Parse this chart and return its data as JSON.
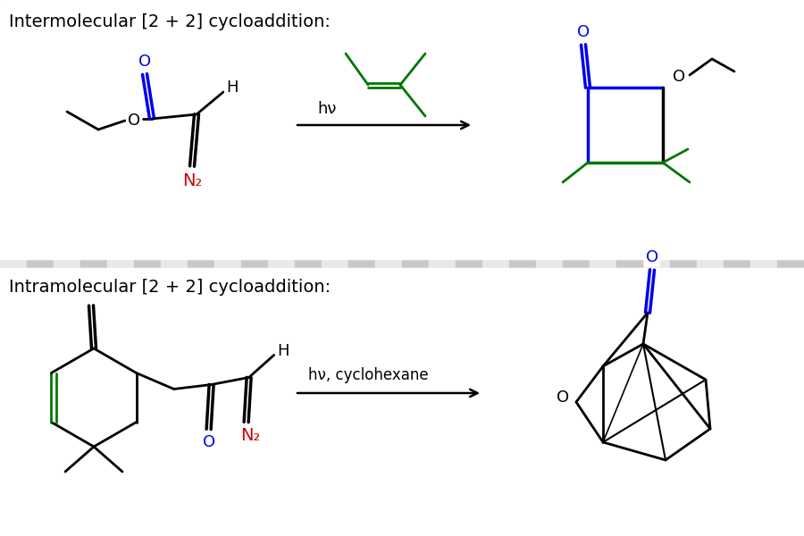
{
  "bg_color": "#ffffff",
  "title1": "Intermolecular [2 + 2] cycloaddition:",
  "title2": "Intramolecular [2 + 2] cycloaddition:",
  "hv_label1": "hν",
  "hv_label2": "hν, cyclohexane",
  "colors": {
    "black": "#000000",
    "blue": "#0000ee",
    "red": "#cc0000",
    "green": "#007700"
  },
  "checker_light": "#e8e8e8",
  "checker_dark": "#c8c8c8",
  "lw": 2.0,
  "lw2": 2.5
}
